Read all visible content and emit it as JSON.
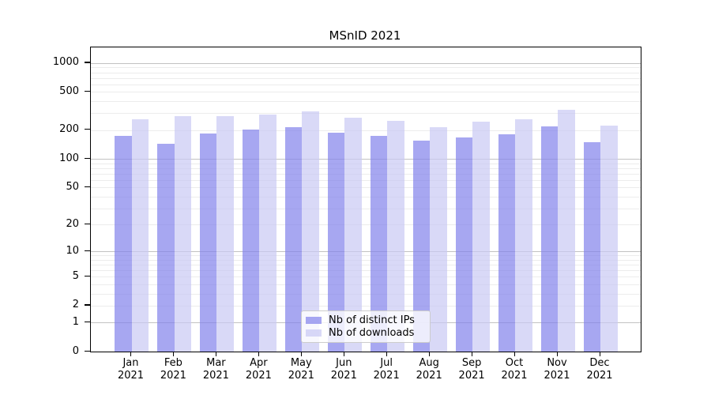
{
  "chart_data": {
    "type": "bar",
    "title": "MSnID 2021",
    "months": [
      "Jan",
      "Feb",
      "Mar",
      "Apr",
      "May",
      "Jun",
      "Jul",
      "Aug",
      "Sep",
      "Oct",
      "Nov",
      "Dec"
    ],
    "year": "2021",
    "categories": [
      "Jan 2021",
      "Feb 2021",
      "Mar 2021",
      "Apr 2021",
      "May 2021",
      "Jun 2021",
      "Jul 2021",
      "Aug 2021",
      "Sep 2021",
      "Oct 2021",
      "Nov 2021",
      "Dec 2021"
    ],
    "series": [
      {
        "name": "Nb of distinct IPs",
        "color": "rgba(130,130,235,0.7)",
        "values": [
          175,
          145,
          185,
          203,
          216,
          189,
          175,
          155,
          167,
          180,
          220,
          150
        ]
      },
      {
        "name": "Nb of downloads",
        "color": "rgba(201,201,244,0.7)",
        "values": [
          261,
          278,
          278,
          292,
          313,
          270,
          248,
          213,
          247,
          262,
          328,
          225
        ]
      }
    ],
    "yscale": "log1p",
    "ytick_labels": [
      "0",
      "1",
      "2",
      "5",
      "10",
      "20",
      "50",
      "100",
      "200",
      "500",
      "1000"
    ],
    "yticks": [
      0,
      1,
      2,
      5,
      10,
      20,
      50,
      100,
      200,
      500,
      1000
    ],
    "ylim": [
      0,
      1455
    ],
    "grid": "horizontal log minor+major",
    "legend_position": "bottom-center",
    "xlabel": "",
    "ylabel": ""
  },
  "colors": {
    "bar_dark": "rgba(130,130,235,0.7)",
    "bar_light": "rgba(201,201,244,0.7)",
    "grid_minor": "#ececec",
    "grid_major": "#c2c2c2",
    "axis": "#000000",
    "legend_border": "#cccccc"
  }
}
